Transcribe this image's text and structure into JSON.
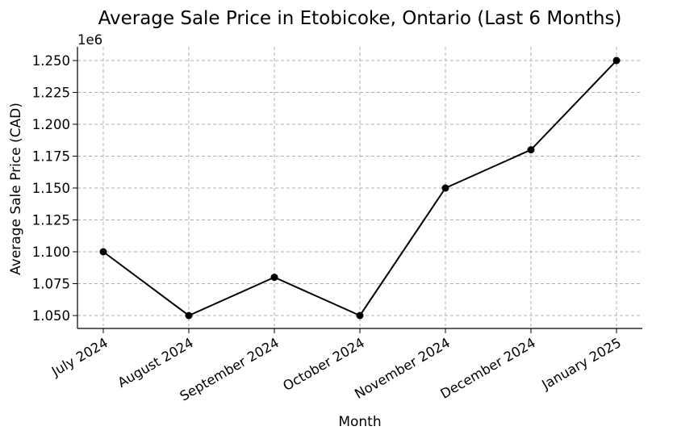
{
  "chart_data": {
    "type": "line",
    "title": "Average Sale Price in Etobicoke, Ontario (Last 6 Months)",
    "xlabel": "Month",
    "ylabel": "Average Sale Price (CAD)",
    "y_offset_label": "1e6",
    "categories": [
      "July 2024",
      "August 2024",
      "September 2024",
      "October 2024",
      "November 2024",
      "December 2024",
      "January 2025"
    ],
    "series": [
      {
        "values": [
          1100000,
          1050000,
          1080000,
          1050000,
          1150000,
          1180000,
          1250000
        ]
      }
    ],
    "y_ticks": [
      1050000,
      1075000,
      1100000,
      1125000,
      1150000,
      1175000,
      1200000,
      1225000,
      1250000
    ],
    "y_tick_labels": [
      "1.050",
      "1.075",
      "1.100",
      "1.125",
      "1.150",
      "1.175",
      "1.200",
      "1.225",
      "1.250"
    ],
    "ylim": [
      1040000,
      1260000
    ],
    "grid": true,
    "line_color": "#000000",
    "marker": "circle"
  }
}
